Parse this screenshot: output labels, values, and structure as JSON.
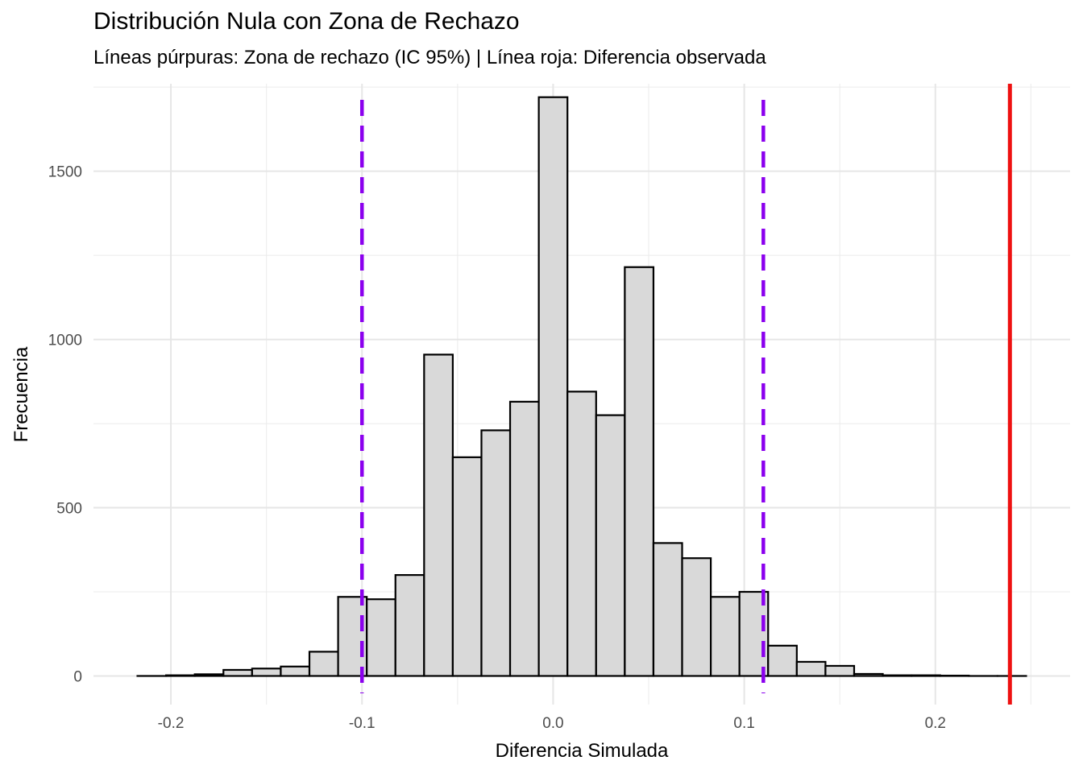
{
  "chart_data": {
    "type": "bar",
    "title": "Distribución Nula con Zona de Rechazo",
    "subtitle": "Líneas púrpuras: Zona de rechazo (IC 95%) | Línea roja: Diferencia observada",
    "xlabel": "Diferencia Simulada",
    "ylabel": "Frecuencia",
    "xlim": [
      -0.2405,
      0.2705
    ],
    "ylim": [
      -85,
      1760
    ],
    "x_ticks": [
      -0.2,
      -0.1,
      0.0,
      0.1,
      0.2
    ],
    "x_tick_labels": [
      "-0.2",
      "-0.1",
      "0.0",
      "0.1",
      "0.2"
    ],
    "y_ticks": [
      0,
      500,
      1000,
      1500
    ],
    "y_tick_labels": [
      "0",
      "500",
      "1000",
      "1500"
    ],
    "grid": true,
    "bin_width": 0.015,
    "bins_start": -0.2175,
    "values": [
      0,
      2,
      5,
      18,
      22,
      28,
      72,
      235,
      228,
      300,
      955,
      650,
      730,
      815,
      1720,
      845,
      775,
      1215,
      395,
      350,
      235,
      250,
      90,
      42,
      30,
      6,
      2,
      2,
      1,
      0,
      0
    ],
    "fill_color": "#d9d9d9",
    "edge_color": "#000000",
    "rejection_lines": [
      -0.1,
      0.11
    ],
    "rejection_color": "#8b00ee",
    "observed_diff": 0.239,
    "observed_color": "#ee1111"
  }
}
